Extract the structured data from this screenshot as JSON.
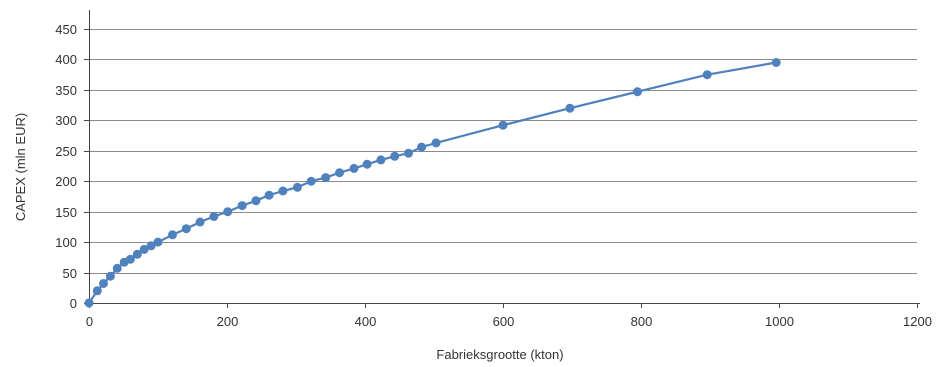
{
  "chart_data": {
    "type": "scatter",
    "title": "",
    "xlabel": "Fabrieksgrootte (kton)",
    "ylabel": "CAPEX (mln EUR)",
    "xlim": [
      0,
      1200
    ],
    "ylim": [
      0,
      450
    ],
    "x_ticks": [
      0,
      200,
      400,
      600,
      800,
      1000,
      1200
    ],
    "y_ticks": [
      0,
      50,
      100,
      150,
      200,
      250,
      300,
      350,
      400,
      450
    ],
    "x_tick_labels": [
      "0",
      "200",
      "400",
      "600",
      "800",
      "1000",
      "1200"
    ],
    "y_tick_labels": [
      "0",
      "50",
      "100",
      "150",
      "200",
      "250",
      "300",
      "350",
      "400",
      "450"
    ],
    "grid": "horizontal",
    "legend": "none",
    "series": [
      {
        "color": "#4f81bd",
        "style": "smoothed-line-with-markers",
        "x": [
          0,
          12,
          21,
          31,
          41,
          51,
          60,
          70,
          80,
          90,
          100,
          121,
          141,
          161,
          181,
          201,
          222,
          242,
          261,
          281,
          302,
          322,
          343,
          363,
          384,
          403,
          423,
          443,
          463,
          482,
          503,
          600,
          697,
          795,
          896,
          996
        ],
        "y": [
          0,
          20,
          32,
          44,
          57,
          67,
          72,
          80,
          88,
          94,
          100,
          112,
          122,
          133,
          142,
          150,
          160,
          168,
          177,
          184,
          190,
          200,
          206,
          214,
          221,
          228,
          235,
          241,
          246,
          256,
          263,
          292,
          320,
          347,
          375,
          395
        ]
      }
    ]
  }
}
